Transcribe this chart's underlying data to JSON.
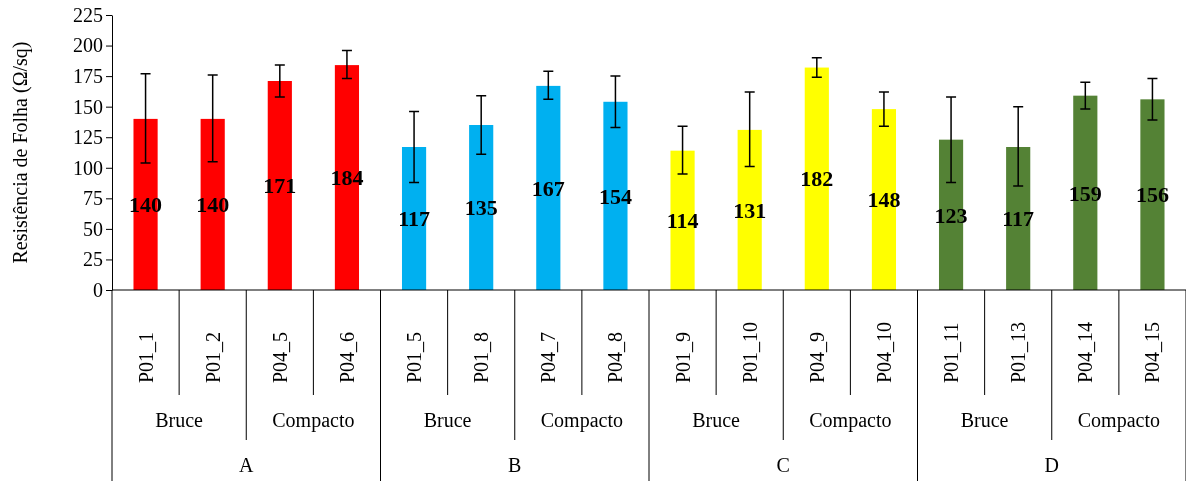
{
  "chart_data": {
    "type": "bar",
    "ylabel": "Resistência de Folha (Ω/sq)",
    "categories": [
      "P01_1",
      "P01_2",
      "P04_5",
      "P04_6",
      "P01_5",
      "P01_8",
      "P04_7",
      "P04_8",
      "P01_9",
      "P01_10",
      "P04_9",
      "P04_10",
      "P01_11",
      "P01_13",
      "P04_14",
      "P04_15"
    ],
    "values": [
      140,
      140,
      171,
      184,
      117,
      135,
      167,
      154,
      114,
      131,
      182,
      148,
      123,
      117,
      159,
      156
    ],
    "colors": [
      "#ff0000",
      "#ff0000",
      "#ff0000",
      "#ff0000",
      "#00b0f0",
      "#00b0f0",
      "#00b0f0",
      "#00b0f0",
      "#ffff00",
      "#ffff00",
      "#ffff00",
      "#ffff00",
      "#548235",
      "#548235",
      "#548235",
      "#548235"
    ],
    "errors": [
      [
        104,
        177
      ],
      [
        105,
        176
      ],
      [
        158,
        184
      ],
      [
        173,
        196
      ],
      [
        88,
        146
      ],
      [
        111,
        159
      ],
      [
        156,
        179
      ],
      [
        133,
        175
      ],
      [
        95,
        134
      ],
      [
        101,
        162
      ],
      [
        174,
        190
      ],
      [
        134,
        162
      ],
      [
        88,
        158
      ],
      [
        85,
        150
      ],
      [
        148,
        170
      ],
      [
        139,
        173
      ]
    ],
    "data_labels": true,
    "ylim": [
      0,
      225
    ],
    "yticks": [
      0,
      25,
      50,
      75,
      100,
      125,
      150,
      175,
      200,
      225
    ],
    "annotations": [
      "Bruce",
      "Compacto",
      "Bruce",
      "Compacto",
      "Bruce",
      "Compacto",
      "Bruce",
      "Compacto",
      "A",
      "B",
      "C",
      "D"
    ],
    "grid": false
  }
}
